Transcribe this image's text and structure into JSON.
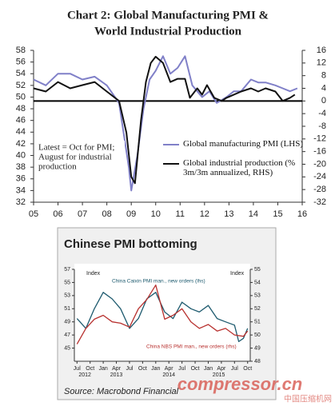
{
  "chart_data": [
    {
      "type": "line",
      "title": [
        "Chart 2: Global Manufacturing PMI &",
        "World Industrial Production"
      ],
      "annotation": [
        "Latest = Oct for PMI;",
        "August for industrial",
        "production"
      ],
      "xlim": [
        2005,
        2016
      ],
      "xticks": [
        {
          "value": 2005,
          "label": "05"
        },
        {
          "value": 2006,
          "label": "06"
        },
        {
          "value": 2007,
          "label": "07"
        },
        {
          "value": 2008,
          "label": "08"
        },
        {
          "value": 2009,
          "label": "09"
        },
        {
          "value": 2010,
          "label": "10"
        },
        {
          "value": 2011,
          "label": "11"
        },
        {
          "value": 2012,
          "label": "12"
        },
        {
          "value": 2013,
          "label": "13"
        },
        {
          "value": 2014,
          "label": "14"
        },
        {
          "value": 2015,
          "label": "15"
        },
        {
          "value": 2016,
          "label": "16"
        }
      ],
      "ylim": [
        32,
        58
      ],
      "yticks": [
        32,
        34,
        36,
        38,
        40,
        42,
        44,
        46,
        48,
        50,
        52,
        54,
        56,
        58
      ],
      "y2lim": [
        -32,
        16
      ],
      "y2ticks": [
        -32,
        -28,
        -24,
        -20,
        -16,
        -12,
        -8,
        -4,
        0,
        4,
        8,
        12,
        16
      ],
      "series": [
        {
          "name": "Global manufacturing PMI (LHS)",
          "color": "#8080c8",
          "axis": "y",
          "x": [
            2005.0,
            2005.5,
            2006.0,
            2006.5,
            2007.0,
            2007.5,
            2008.0,
            2008.5,
            2008.9,
            2009.0,
            2009.25,
            2009.5,
            2009.75,
            2010.0,
            2010.3,
            2010.6,
            2010.9,
            2011.2,
            2011.5,
            2011.9,
            2012.2,
            2012.5,
            2012.9,
            2013.2,
            2013.5,
            2013.9,
            2014.2,
            2014.5,
            2014.9,
            2015.2,
            2015.5,
            2015.8
          ],
          "values": [
            53,
            52,
            54,
            54,
            53,
            53.5,
            52,
            49,
            38,
            34,
            40,
            48,
            53,
            54.5,
            57,
            54,
            55,
            57,
            52,
            50,
            51,
            49,
            50,
            51,
            51,
            53,
            52.5,
            52.5,
            52,
            51.5,
            51,
            51.5
          ]
        },
        {
          "name": "Global industrial production (% 3m/3m annualized, RHS)",
          "color": "#111111",
          "axis": "y2",
          "x": [
            2005.0,
            2005.5,
            2006.0,
            2006.5,
            2007.0,
            2007.5,
            2008.0,
            2008.5,
            2008.8,
            2009.0,
            2009.15,
            2009.4,
            2009.6,
            2009.8,
            2010.0,
            2010.3,
            2010.6,
            2010.9,
            2011.2,
            2011.4,
            2011.7,
            2011.9,
            2012.1,
            2012.4,
            2012.7,
            2012.9,
            2013.2,
            2013.5,
            2013.9,
            2014.2,
            2014.5,
            2014.9,
            2015.2,
            2015.5,
            2015.7
          ],
          "values": [
            4,
            3,
            6,
            4,
            5,
            6,
            3,
            0,
            -10,
            -24,
            -26,
            -6,
            6,
            12,
            14,
            12,
            6,
            7,
            7,
            1,
            4,
            2,
            5,
            1,
            0,
            1,
            2,
            3,
            4,
            3,
            4,
            3,
            0,
            1,
            2
          ]
        }
      ]
    },
    {
      "type": "line",
      "title": "Chinese PMI bottoming",
      "source": "Source: Macrobond Financial",
      "y_label": "Index",
      "y2_label": "Index",
      "xlim": [
        2012.45,
        2015.8
      ],
      "xticks": [
        {
          "value": 2012.5,
          "label": "Jul"
        },
        {
          "value": 2012.75,
          "label": "Oct"
        },
        {
          "value": 2013.0,
          "label": "Jan"
        },
        {
          "value": 2013.25,
          "label": "Apr"
        },
        {
          "value": 2013.5,
          "label": "Jul"
        },
        {
          "value": 2013.75,
          "label": "Oct"
        },
        {
          "value": 2014.0,
          "label": "Jan"
        },
        {
          "value": 2014.25,
          "label": "Apr"
        },
        {
          "value": 2014.5,
          "label": "Jul"
        },
        {
          "value": 2014.75,
          "label": "Oct"
        },
        {
          "value": 2015.0,
          "label": "Jan"
        },
        {
          "value": 2015.25,
          "label": "Apr"
        },
        {
          "value": 2015.5,
          "label": "Jul"
        },
        {
          "value": 2015.75,
          "label": "Oct"
        }
      ],
      "year_labels": [
        {
          "value": 2012.65,
          "label": "2012"
        },
        {
          "value": 2013.25,
          "label": "2013"
        },
        {
          "value": 2014.25,
          "label": "2014"
        },
        {
          "value": 2015.2,
          "label": "2015"
        }
      ],
      "ylim": [
        43,
        57
      ],
      "yticks": [
        45,
        47,
        49,
        51,
        53,
        55,
        57
      ],
      "y2lim": [
        48,
        55
      ],
      "y2ticks": [
        48,
        49,
        50,
        51,
        52,
        53,
        54,
        55
      ],
      "series": [
        {
          "name": "China Caixin PMI man., new orders (lhs)",
          "color": "#1d5a6e",
          "axis": "y",
          "x": [
            2012.5,
            2012.67,
            2012.83,
            2013.0,
            2013.17,
            2013.33,
            2013.5,
            2013.67,
            2013.83,
            2014.0,
            2014.17,
            2014.33,
            2014.5,
            2014.67,
            2014.83,
            2015.0,
            2015.17,
            2015.33,
            2015.5,
            2015.58,
            2015.67,
            2015.75
          ],
          "values": [
            49.5,
            48,
            51,
            53.5,
            52.5,
            51,
            48,
            49.5,
            52.5,
            53.5,
            50.5,
            49.5,
            52,
            51,
            50.5,
            51.5,
            49.5,
            49,
            48.5,
            46,
            46.5,
            48
          ]
        },
        {
          "name": "China NBS PMI man., new orders (rhs)",
          "color": "#b8312f",
          "axis": "y2",
          "x": [
            2012.5,
            2012.67,
            2012.83,
            2013.0,
            2013.17,
            2013.33,
            2013.5,
            2013.67,
            2013.83,
            2014.0,
            2014.17,
            2014.33,
            2014.5,
            2014.67,
            2014.83,
            2015.0,
            2015.17,
            2015.33,
            2015.5,
            2015.67,
            2015.75
          ],
          "values": [
            49.3,
            50.5,
            51.2,
            51.5,
            51.0,
            50.9,
            50.6,
            52.0,
            52.7,
            53.8,
            51.2,
            51.5,
            52.0,
            51.0,
            50.5,
            50.8,
            50.3,
            50.5,
            50.0,
            49.9,
            50.3
          ]
        }
      ]
    }
  ],
  "watermark": {
    "brand": "compressor.cn",
    "site": "中国压缩机网"
  }
}
